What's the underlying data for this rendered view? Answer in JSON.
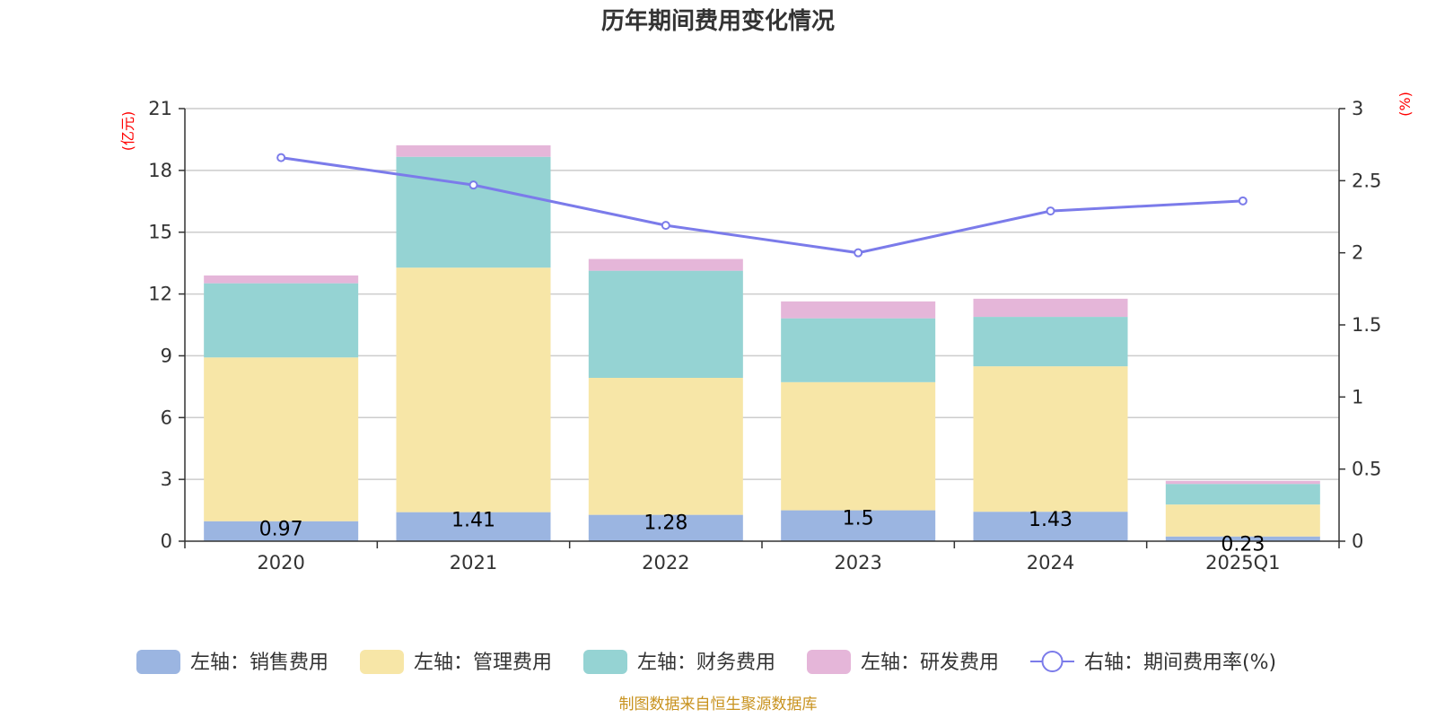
{
  "chart_data": {
    "type": "bar",
    "stacked": true,
    "title": "历年期间费用变化情况",
    "categories": [
      "2020",
      "2021",
      "2022",
      "2023",
      "2024",
      "2025Q1"
    ],
    "left_axis": {
      "unit": "(亿元)",
      "ylim": [
        0,
        21
      ],
      "ticks": [
        "0",
        "3",
        "6",
        "9",
        "12",
        "15",
        "18",
        "21"
      ]
    },
    "right_axis": {
      "unit": "(%)",
      "ylim": [
        0,
        3
      ],
      "ticks": [
        "0",
        "0.5",
        "1",
        "1.5",
        "2",
        "2.5",
        "3"
      ]
    },
    "series": [
      {
        "name": "左轴：销售费用",
        "color": "#9bb5e1",
        "values": [
          0.97,
          1.41,
          1.28,
          1.5,
          1.43,
          0.23
        ],
        "labels": [
          "0.97",
          "1.41",
          "1.28",
          "1.5",
          "1.43",
          "0.23"
        ]
      },
      {
        "name": "左轴：管理费用",
        "color": "#f7e6a7",
        "values": [
          7.95,
          11.87,
          6.65,
          6.22,
          7.06,
          1.55
        ]
      },
      {
        "name": "左轴：财务费用",
        "color": "#95d3d3",
        "values": [
          3.6,
          5.38,
          5.2,
          3.1,
          2.4,
          1.0
        ]
      },
      {
        "name": "左轴：研发费用",
        "color": "#e5b6d9",
        "values": [
          0.38,
          0.56,
          0.57,
          0.82,
          0.88,
          0.15
        ]
      }
    ],
    "line_series": {
      "name": "右轴：期间费用率(%)",
      "color": "#7b7bea",
      "axis": "right",
      "values": [
        2.66,
        2.47,
        2.19,
        2.0,
        2.29,
        2.36
      ]
    },
    "grid": true,
    "legend_position": "bottom"
  },
  "source": "制图数据来自恒生聚源数据库"
}
